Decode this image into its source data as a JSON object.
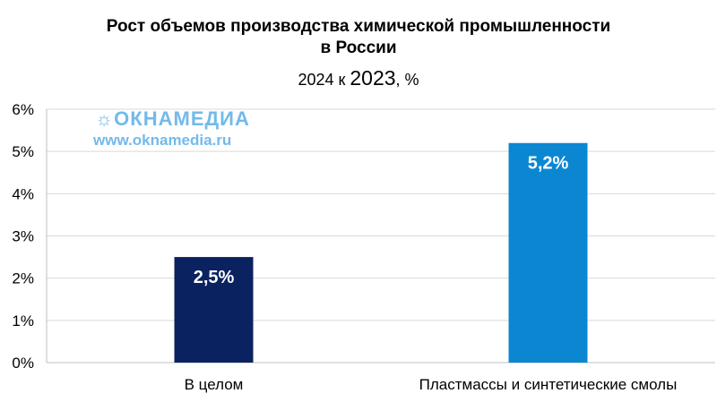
{
  "title_line1": "Рост объемов производства химической промышленности",
  "title_line2": "в России",
  "subtitle": {
    "prefix": "2024 к ",
    "year": "2023",
    "suffix": ", %"
  },
  "watermark": {
    "logo": "ОКНАМЕДИА",
    "url": "www.oknamedia.ru"
  },
  "colors": {
    "bar1": "#0b2260",
    "bar2": "#0b87d2",
    "grid": "#d9d9d9",
    "axis": "#bfbfbf"
  },
  "chart_data": {
    "type": "bar",
    "categories": [
      "В целом",
      "Пластмассы и синтетические смолы"
    ],
    "values": [
      2.5,
      5.2
    ],
    "value_labels": [
      "2,5%",
      "5,2%"
    ],
    "ylim": [
      0,
      6
    ],
    "y_ticks": [
      "0%",
      "1%",
      "2%",
      "3%",
      "4%",
      "5%",
      "6%"
    ],
    "grid": true,
    "legend": "none"
  }
}
